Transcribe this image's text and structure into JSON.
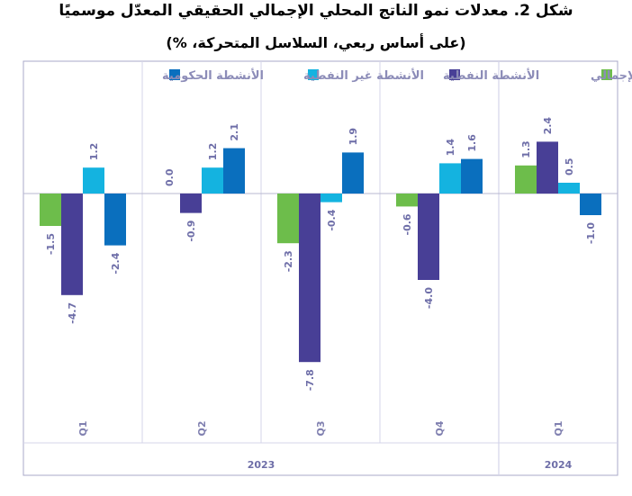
{
  "chart_data": {
    "type": "bar",
    "title": "شكل 2. معدلات نمو الناتج المحلي الإجمالي الحقيقي المعدّل موسميًا",
    "subtitle": "(على أساس ربعي، السلاسل المتحركة، %)",
    "categories": [
      {
        "quarter": "Q1",
        "year": "2023"
      },
      {
        "quarter": "Q2",
        "year": "2023"
      },
      {
        "quarter": "Q3",
        "year": "2023"
      },
      {
        "quarter": "Q4",
        "year": "2023"
      },
      {
        "quarter": "Q1",
        "year": "2024"
      }
    ],
    "year_groups": [
      {
        "label": "2023",
        "count": 4
      },
      {
        "label": "2024",
        "count": 1
      }
    ],
    "series": [
      {
        "name": "الناتج المحلي الإجمالي",
        "color": "#6dbd4b",
        "values": [
          -1.5,
          0.0,
          -2.3,
          -0.6,
          1.3
        ]
      },
      {
        "name": "الأنشطة النفطية",
        "color": "#483f96",
        "values": [
          -4.7,
          -0.9,
          -7.8,
          -4.0,
          2.4
        ]
      },
      {
        "name": "الأنشطة غير النفطية",
        "color": "#14b3e0",
        "values": [
          1.2,
          1.2,
          -0.4,
          1.4,
          0.5
        ]
      },
      {
        "name": "الأنشطة الحكومية",
        "color": "#0a6fbe",
        "values": [
          -2.4,
          2.1,
          1.9,
          1.6,
          -1.0
        ]
      }
    ],
    "legend_position": "top",
    "grid": false
  }
}
